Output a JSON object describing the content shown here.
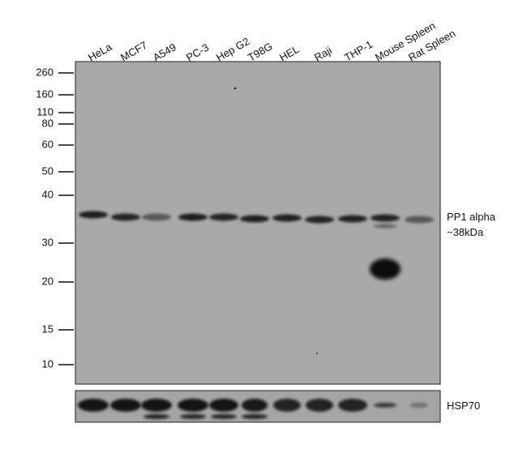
{
  "lanes": [
    "HeLa",
    "MCF7",
    "A549",
    "PC-3",
    "Hep G2",
    "T98G",
    "HEL",
    "Raji",
    "THP-1",
    "Mouse Spleen",
    "Rat Spleen"
  ],
  "markers": [
    260,
    160,
    110,
    80,
    60,
    50,
    40,
    30,
    20,
    15,
    10
  ],
  "annotations": {
    "target": "PP1 alpha",
    "size": "~38kDa",
    "loading_control": "HSP70"
  }
}
